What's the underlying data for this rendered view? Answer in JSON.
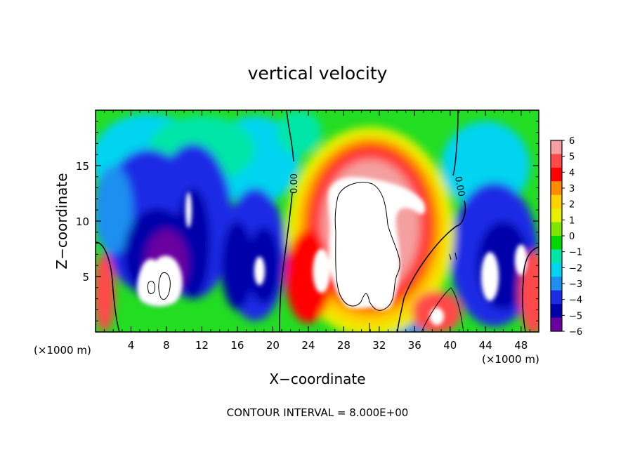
{
  "chart_data": {
    "type": "heatmap",
    "title": "vertical velocity",
    "xlabel": "X−coordinate",
    "ylabel": "Z−coordinate",
    "x_unit_left": "(×1000 m)",
    "x_unit_right": "(×1000 m)",
    "footer": "CONTOUR INTERVAL = 8.000E+00",
    "xlim": [
      0,
      50
    ],
    "ylim": [
      0,
      20
    ],
    "x_ticks": [
      4,
      8,
      12,
      16,
      20,
      24,
      28,
      32,
      36,
      40,
      44,
      48
    ],
    "x_tick_labels": [
      "4",
      "8",
      "12",
      "16",
      "20",
      "24",
      "28",
      "32",
      "36",
      "40",
      "44",
      "48"
    ],
    "y_ticks": [
      5,
      10,
      15
    ],
    "y_tick_labels": [
      "5",
      "10",
      "15"
    ],
    "colorbar": {
      "min": -6,
      "max": 6,
      "tick_labels": [
        "6",
        "5",
        "4",
        "3",
        "2",
        "1",
        "0",
        "−1",
        "−2",
        "−3",
        "−4",
        "−5",
        "−6"
      ],
      "colors": [
        "#f4a0a0",
        "#ff4a4a",
        "#ff0000",
        "#ff8c00",
        "#ffd200",
        "#e6f000",
        "#7ee600",
        "#00d800",
        "#00e6a8",
        "#00d4f0",
        "#1e8ff0",
        "#1a2ce6",
        "#0000aa",
        "#6a00a0"
      ]
    },
    "contour_labels": [
      "0.00",
      "0.00"
    ],
    "colors": {
      "background_field": "#22dd22",
      "white_saturated": "#ffffff"
    }
  }
}
